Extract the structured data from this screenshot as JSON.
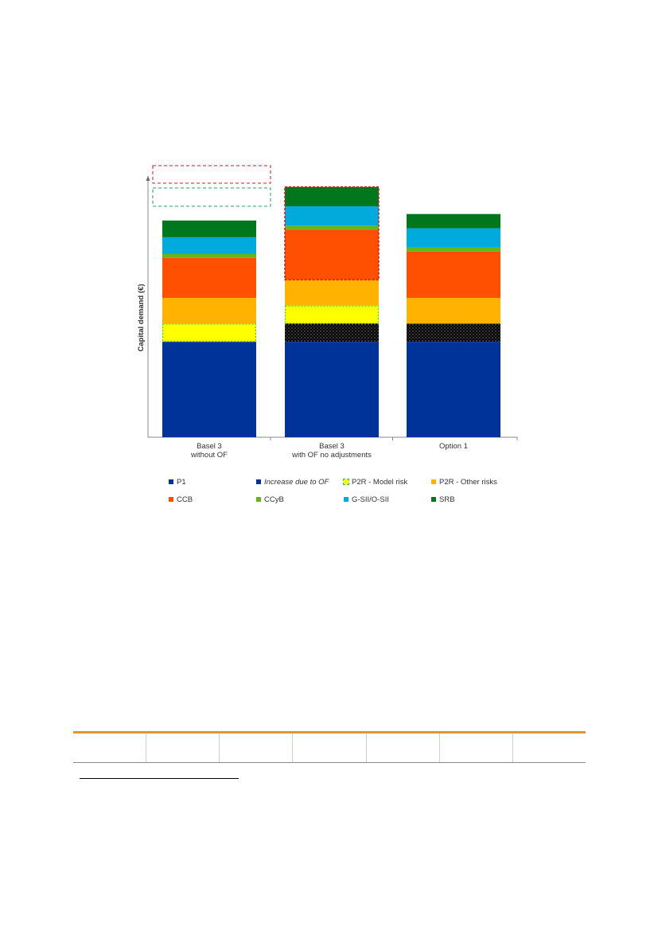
{
  "chart_data": {
    "type": "bar",
    "stacked": true,
    "ylabel": "Capital demand (€)",
    "categories": [
      [
        "Basel 3",
        "without OF"
      ],
      [
        "Basel 3",
        "with OF no adjustments"
      ],
      [
        "Option 1"
      ]
    ],
    "ylim": [
      0,
      100
    ],
    "series": [
      {
        "name": "P1",
        "color": "#003399",
        "values": [
          37,
          37,
          37
        ]
      },
      {
        "name": "Increase due to OF",
        "color": "#003399",
        "pattern": "dotted",
        "values": [
          0,
          7,
          7
        ]
      },
      {
        "name": "P2R - Model risk",
        "color": "#ffff00",
        "values": [
          7,
          7,
          0
        ]
      },
      {
        "name": "P2R - Other risks",
        "color": "#ffb300",
        "values": [
          10,
          10,
          10
        ]
      },
      {
        "name": "CCB",
        "color": "#ff4f00",
        "values": [
          15.5,
          19.5,
          18
        ]
      },
      {
        "name": "CCyB",
        "color": "#66b51d",
        "values": [
          1.5,
          1.5,
          1.5
        ]
      },
      {
        "name": "G-SII/O-SII",
        "color": "#00aadd",
        "values": [
          6.5,
          7.5,
          7.5
        ]
      },
      {
        "name": "SRB",
        "color": "#00761d",
        "values": [
          6.5,
          7.5,
          5.5
        ]
      }
    ],
    "grid": false,
    "legend_position": "bottom"
  },
  "legend": {
    "rows": [
      [
        "P1",
        "Increase due to OF",
        "P2R - Model risk",
        "P2R - Other risks"
      ],
      [
        "CCB",
        "CCyB",
        "G-SII/O-SII",
        "SRB"
      ]
    ]
  }
}
